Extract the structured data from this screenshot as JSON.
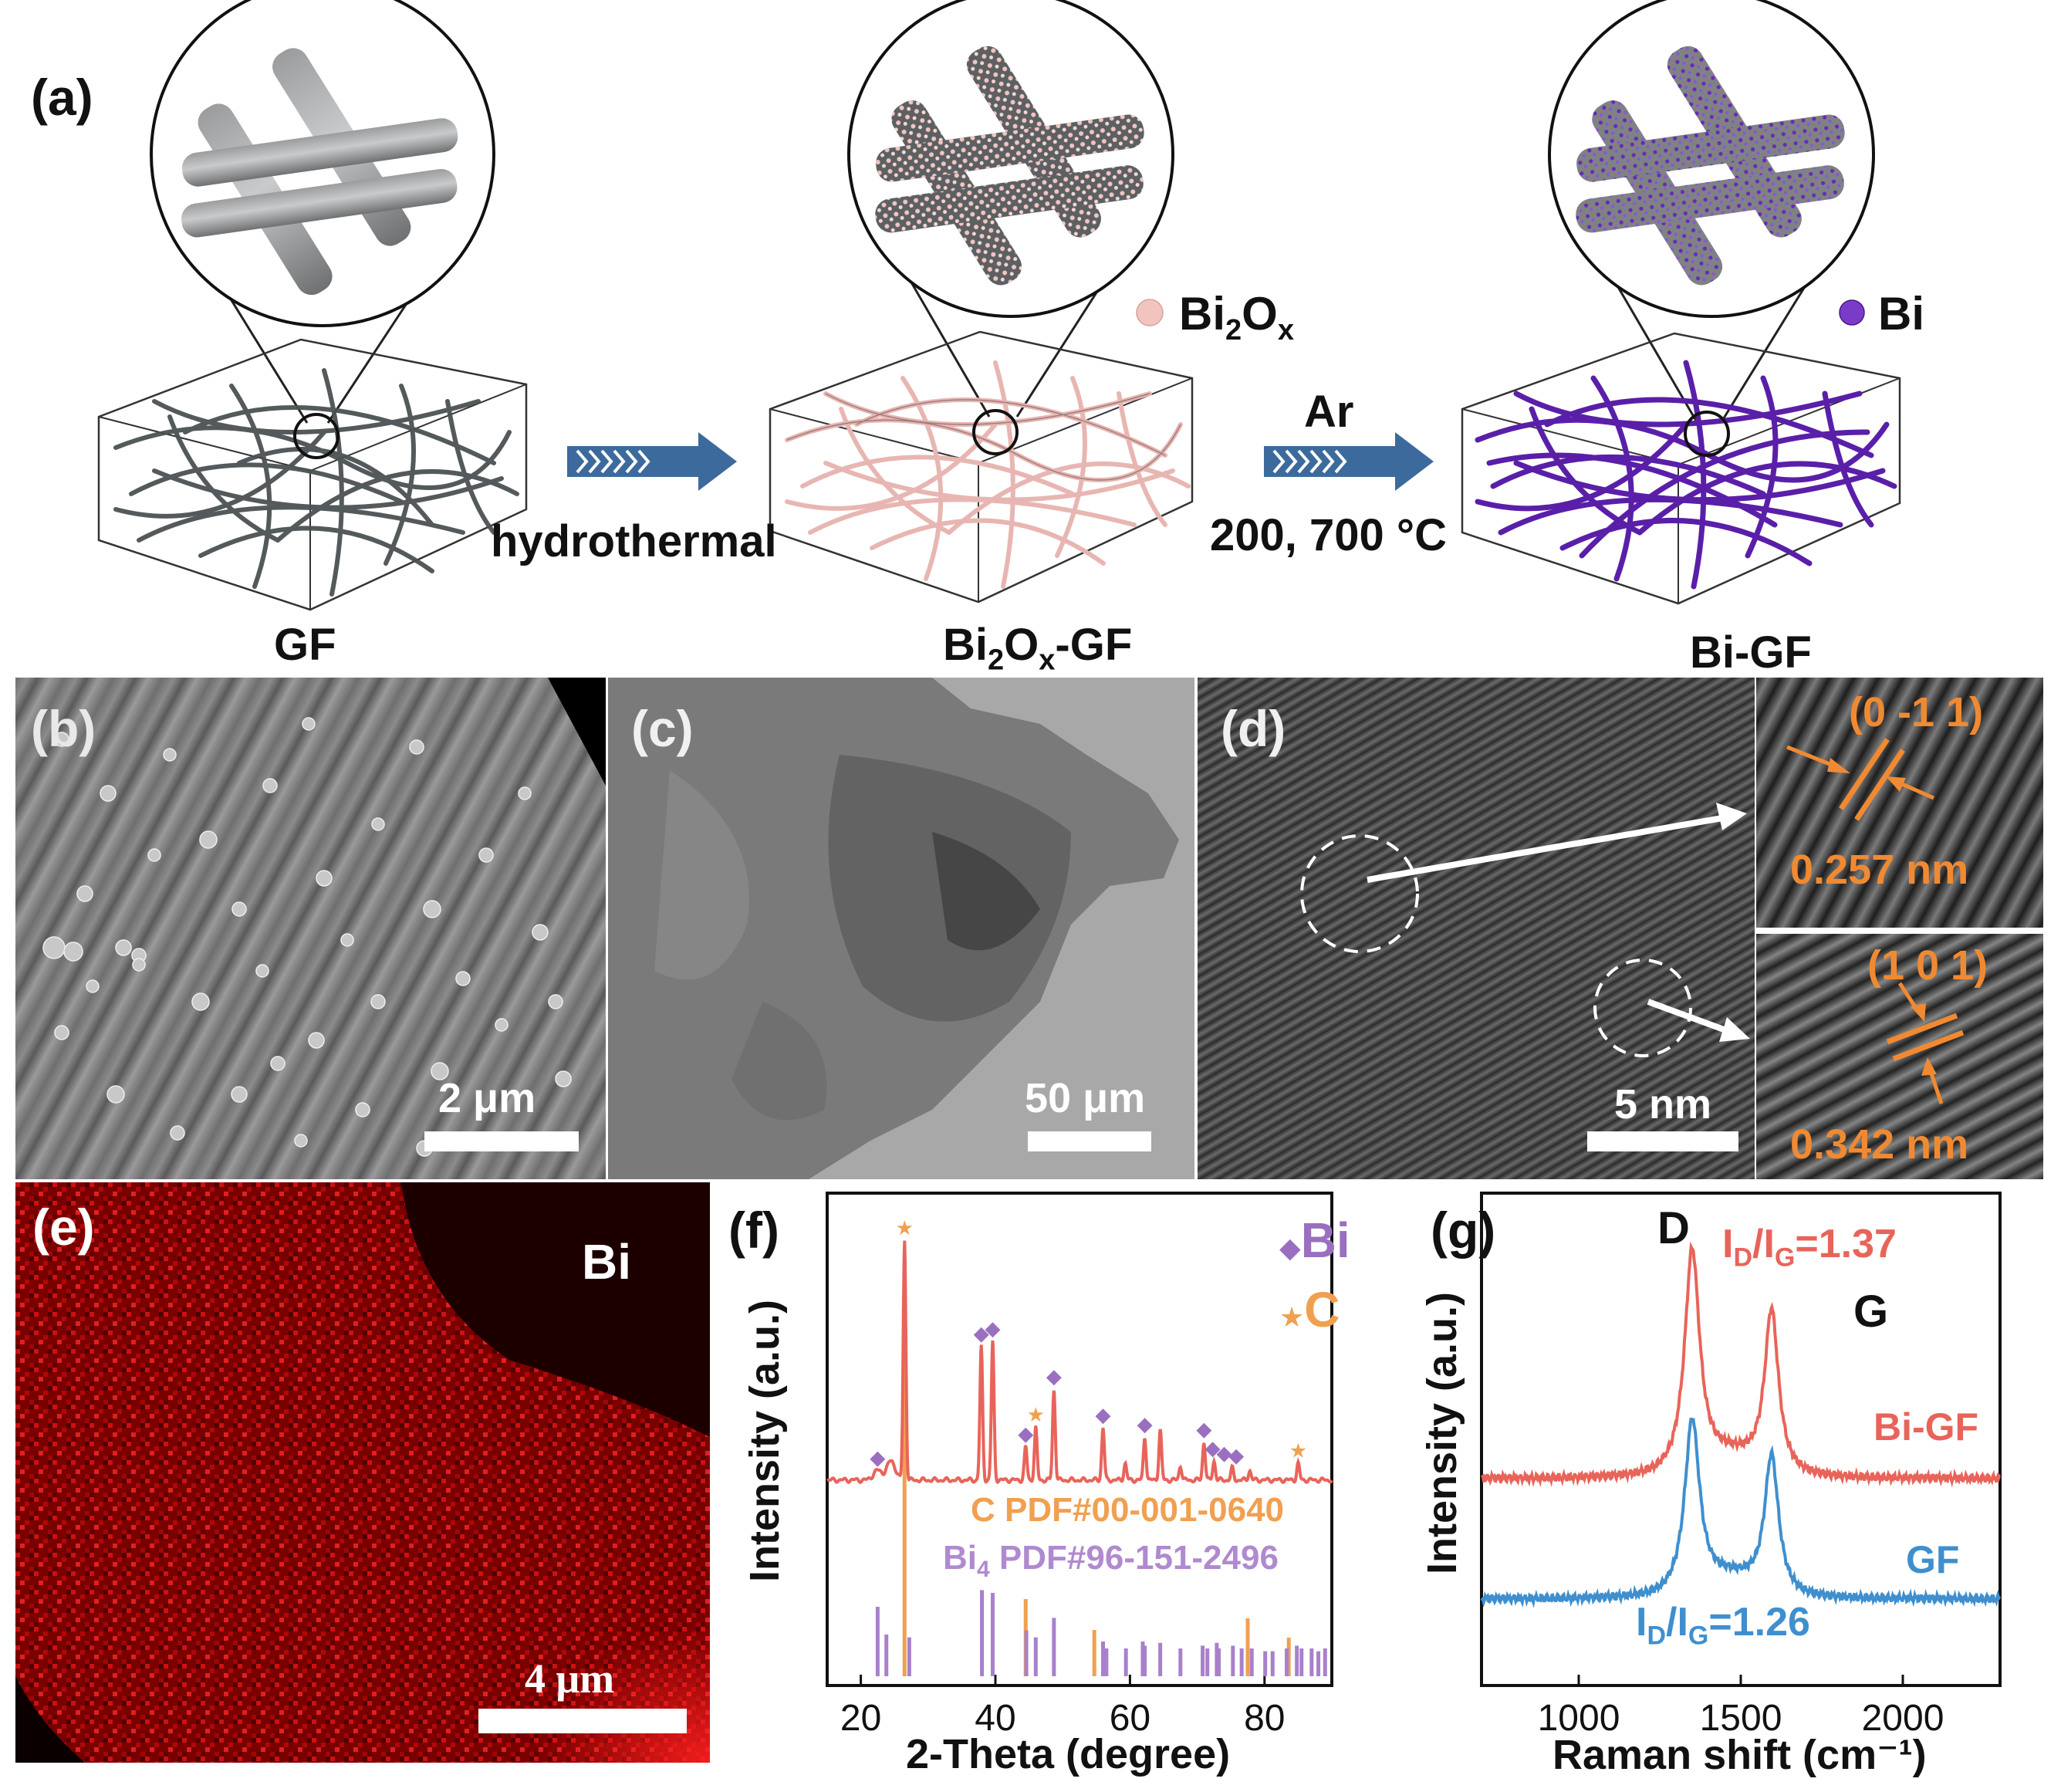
{
  "panel_a": {
    "label": "(a)",
    "stages": [
      {
        "name": "GF"
      },
      {
        "name": "Bi",
        "sub": "2",
        "name2": "O",
        "sub2": "x",
        "name3": "-GF"
      },
      {
        "name": "Bi-GF"
      }
    ],
    "legend_bi2ox": {
      "text": "Bi",
      "sub": "2",
      "text2": "O",
      "sub2": "x"
    },
    "legend_bi": "Bi",
    "step1": "hydrothermal",
    "step2_gas": "Ar",
    "step2_temp": "200, 700 °C",
    "colors": {
      "gf": "#4b5254",
      "bi2ox": "#e8b6b2",
      "bi": "#5a1fa8",
      "arrow": "#3d6a9c"
    }
  },
  "panel_b": {
    "label": "(b)",
    "scale": "2 μm"
  },
  "panel_c": {
    "label": "(c)",
    "scale": "50 μm"
  },
  "panel_d": {
    "label": "(d)",
    "scale": "5 nm",
    "inset1": {
      "plane": "(0 -1 1)",
      "spacing": "0.257 nm"
    },
    "inset2": {
      "plane": "(1 0 1)",
      "spacing": "0.342 nm"
    }
  },
  "panel_e": {
    "label": "(e)",
    "element": "Bi",
    "scale": "4 μm"
  },
  "chart_data": [
    {
      "panel": "(f)",
      "type": "line",
      "title": "",
      "xlabel": "2-Theta (degree)",
      "ylabel": "Intensity (a.u.)",
      "xlim": [
        15,
        90
      ],
      "xticks": [
        20,
        40,
        60,
        80
      ],
      "legend": [
        {
          "symbol": "◆",
          "label": "Bi",
          "color": "#9b6fc0"
        },
        {
          "symbol": "★",
          "label": "C",
          "color": "#f0a050"
        }
      ],
      "ref_labels": [
        {
          "text": "C PDF#00-001-0640",
          "color": "#f0a050"
        },
        {
          "text": "Bi",
          "sub": "4",
          "text2": " PDF#96-151-2496",
          "color": "#b08ad0"
        }
      ],
      "series": [
        {
          "name": "Bi-GF",
          "color": "#e8645a",
          "peaks": [
            [
              26.5,
              1.0
            ],
            [
              37.9,
              0.56
            ],
            [
              39.6,
              0.58
            ],
            [
              44.5,
              0.14
            ],
            [
              46.0,
              0.22
            ],
            [
              48.7,
              0.38
            ],
            [
              56.0,
              0.22
            ],
            [
              59.3,
              0.07
            ],
            [
              62.2,
              0.18
            ],
            [
              64.5,
              0.21
            ],
            [
              67.5,
              0.06
            ],
            [
              71.0,
              0.16
            ],
            [
              72.5,
              0.08
            ],
            [
              75.2,
              0.05
            ],
            [
              77.8,
              0.04
            ],
            [
              85.0,
              0.07
            ],
            [
              22.5,
              0.04
            ],
            [
              24.5,
              0.08
            ]
          ]
        }
      ],
      "markers": [
        {
          "x": 22.5,
          "kind": "Bi"
        },
        {
          "x": 26.5,
          "kind": "C"
        },
        {
          "x": 37.9,
          "kind": "Bi"
        },
        {
          "x": 39.6,
          "kind": "Bi"
        },
        {
          "x": 44.5,
          "kind": "Bi"
        },
        {
          "x": 46.0,
          "kind": "C"
        },
        {
          "x": 48.7,
          "kind": "Bi"
        },
        {
          "x": 56.0,
          "kind": "Bi"
        },
        {
          "x": 62.2,
          "kind": "Bi"
        },
        {
          "x": 71.0,
          "kind": "Bi"
        },
        {
          "x": 72.3,
          "kind": "Bi"
        },
        {
          "x": 74.0,
          "kind": "Bi"
        },
        {
          "x": 75.8,
          "kind": "Bi"
        },
        {
          "x": 85.0,
          "kind": "C"
        }
      ],
      "ref_c": [
        [
          26.5,
          1.0
        ],
        [
          44.5,
          0.2
        ],
        [
          54.7,
          0.12
        ],
        [
          77.5,
          0.15
        ],
        [
          83.6,
          0.1
        ]
      ],
      "ref_bi": [
        [
          22.5,
          0.5
        ],
        [
          23.8,
          0.3
        ],
        [
          27.2,
          0.28
        ],
        [
          38.0,
          0.62
        ],
        [
          39.6,
          0.6
        ],
        [
          44.6,
          0.33
        ],
        [
          46.0,
          0.28
        ],
        [
          48.7,
          0.42
        ],
        [
          56.0,
          0.25
        ],
        [
          56.5,
          0.2
        ],
        [
          59.4,
          0.2
        ],
        [
          61.9,
          0.25
        ],
        [
          62.2,
          0.22
        ],
        [
          64.5,
          0.24
        ],
        [
          67.5,
          0.2
        ],
        [
          70.8,
          0.22
        ],
        [
          71.5,
          0.2
        ],
        [
          72.9,
          0.24
        ],
        [
          73.2,
          0.2
        ],
        [
          75.3,
          0.22
        ],
        [
          76.6,
          0.2
        ],
        [
          78.1,
          0.2
        ],
        [
          80.1,
          0.18
        ],
        [
          81.2,
          0.18
        ],
        [
          83.3,
          0.2
        ],
        [
          84.8,
          0.22
        ],
        [
          85.5,
          0.2
        ],
        [
          87.0,
          0.2
        ],
        [
          88.0,
          0.18
        ],
        [
          89.0,
          0.2
        ]
      ]
    },
    {
      "panel": "(g)",
      "type": "line",
      "title": "",
      "xlabel": "Raman shift (cm⁻¹)",
      "ylabel": "Intensity (a.u.)",
      "xlim": [
        700,
        2300
      ],
      "xticks": [
        1000,
        1500,
        2000
      ],
      "peak_labels": {
        "D": "D",
        "G": "G"
      },
      "series": [
        {
          "name": "Bi-GF",
          "color": "#e8645a",
          "ratio": "I",
          "ratio_sub": "D",
          "ratio_mid": "/I",
          "ratio_sub2": "G",
          "ratio_val": "=1.37",
          "D_height": 1.0,
          "G_height": 0.73
        },
        {
          "name": "GF",
          "color": "#3f8fcf",
          "ratio": "I",
          "ratio_sub": "D",
          "ratio_mid": "/I",
          "ratio_sub2": "G",
          "ratio_val": "=1.26",
          "D_height": 0.78,
          "G_height": 0.62
        }
      ]
    }
  ]
}
